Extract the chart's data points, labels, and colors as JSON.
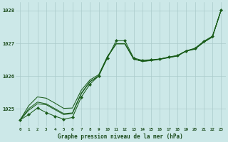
{
  "title": "Graphe pression niveau de la mer (hPa)",
  "x_labels": [
    0,
    1,
    2,
    3,
    4,
    5,
    6,
    7,
    8,
    9,
    10,
    11,
    12,
    13,
    14,
    15,
    16,
    17,
    18,
    19,
    20,
    21,
    22,
    23
  ],
  "ylim": [
    1024.45,
    1028.25
  ],
  "yticks": [
    1025,
    1026,
    1027,
    1028
  ],
  "xlim": [
    -0.5,
    23.5
  ],
  "bg_color": "#cce8e8",
  "grid_color": "#aacaca",
  "line_color": "#1a5c1a",
  "text_color": "#1a4a1a",
  "y_wavy": [
    1024.65,
    1024.82,
    1025.02,
    1024.88,
    1024.77,
    1024.68,
    1024.73,
    1025.35,
    1025.75,
    1026.0,
    1026.55,
    1027.08,
    1027.08,
    1026.55,
    1026.48,
    1026.5,
    1026.52,
    1026.58,
    1026.63,
    1026.77,
    1026.85,
    1027.06,
    1027.22,
    1028.02
  ],
  "y_smooth1": [
    1024.65,
    1024.95,
    1025.15,
    1025.12,
    1024.97,
    1024.82,
    1024.85,
    1025.45,
    1025.82,
    1026.0,
    1026.58,
    1026.98,
    1026.98,
    1026.52,
    1026.45,
    1026.48,
    1026.52,
    1026.57,
    1026.62,
    1026.77,
    1026.83,
    1027.04,
    1027.2,
    1028.02
  ],
  "y_smooth2": [
    1024.65,
    1025.0,
    1025.2,
    1025.15,
    1025.0,
    1024.85,
    1024.87,
    1025.47,
    1025.83,
    1026.0,
    1026.59,
    1026.99,
    1026.99,
    1026.52,
    1026.45,
    1026.48,
    1026.52,
    1026.57,
    1026.62,
    1026.77,
    1026.83,
    1027.04,
    1027.2,
    1028.02
  ],
  "y_linear": [
    1024.65,
    1025.09,
    1025.36,
    1025.32,
    1025.17,
    1025.01,
    1025.02,
    1025.56,
    1025.88,
    1026.04,
    1026.6,
    1026.99,
    1026.99,
    1026.52,
    1026.45,
    1026.47,
    1026.51,
    1026.56,
    1026.61,
    1026.76,
    1026.82,
    1027.03,
    1027.19,
    1028.02
  ]
}
